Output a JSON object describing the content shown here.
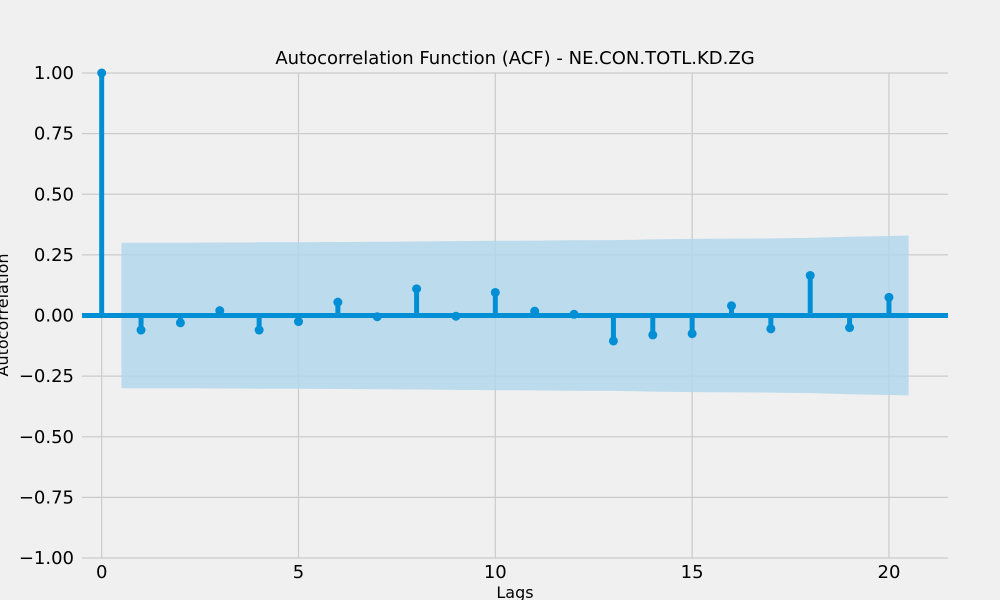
{
  "chart_data": {
    "type": "stem",
    "title": "Autocorrelation Function (ACF) - NE.CON.TOTL.KD.ZG",
    "xlabel": "Lags",
    "ylabel": "Autocorrelation",
    "xlim": [
      -0.5,
      21.5
    ],
    "ylim": [
      -1.0,
      1.0
    ],
    "x_ticks": [
      0,
      5,
      10,
      15,
      20
    ],
    "x_tick_labels": [
      "0",
      "5",
      "10",
      "15",
      "20"
    ],
    "y_ticks": [
      1.0,
      0.75,
      0.5,
      0.25,
      0.0,
      -0.25,
      -0.5,
      -0.75,
      -1.0
    ],
    "y_tick_labels": [
      "1.00",
      "0.75",
      "0.50",
      "0.25",
      "0.00",
      "−0.25",
      "−0.50",
      "−0.75",
      "−1.00"
    ],
    "grid": true,
    "lags": [
      0,
      1,
      2,
      3,
      4,
      5,
      6,
      7,
      8,
      9,
      10,
      11,
      12,
      13,
      14,
      15,
      16,
      17,
      18,
      19,
      20
    ],
    "values": [
      1.0,
      -0.06,
      -0.03,
      0.02,
      -0.06,
      -0.025,
      0.055,
      -0.005,
      0.11,
      -0.003,
      0.095,
      0.018,
      0.005,
      -0.105,
      -0.08,
      -0.075,
      0.04,
      -0.055,
      0.165,
      -0.05,
      0.075
    ],
    "confidence_band": {
      "x": [
        0.5,
        1,
        2,
        3,
        4,
        5,
        6,
        7,
        8,
        9,
        10,
        11,
        12,
        13,
        14,
        15,
        16,
        17,
        18,
        19,
        20,
        20.5
      ],
      "upper": [
        0.3,
        0.3,
        0.3,
        0.301,
        0.302,
        0.302,
        0.303,
        0.304,
        0.305,
        0.307,
        0.308,
        0.309,
        0.31,
        0.311,
        0.314,
        0.316,
        0.317,
        0.318,
        0.32,
        0.325,
        0.328,
        0.33
      ],
      "lower": [
        -0.3,
        -0.3,
        -0.3,
        -0.301,
        -0.302,
        -0.302,
        -0.303,
        -0.304,
        -0.305,
        -0.307,
        -0.308,
        -0.309,
        -0.31,
        -0.311,
        -0.314,
        -0.316,
        -0.317,
        -0.318,
        -0.32,
        -0.325,
        -0.328,
        -0.33
      ]
    },
    "colors": {
      "stem": "#008fd5",
      "band": "#b3d7ec",
      "grid": "#cbcbcb",
      "background": "#f0f0f0"
    }
  }
}
